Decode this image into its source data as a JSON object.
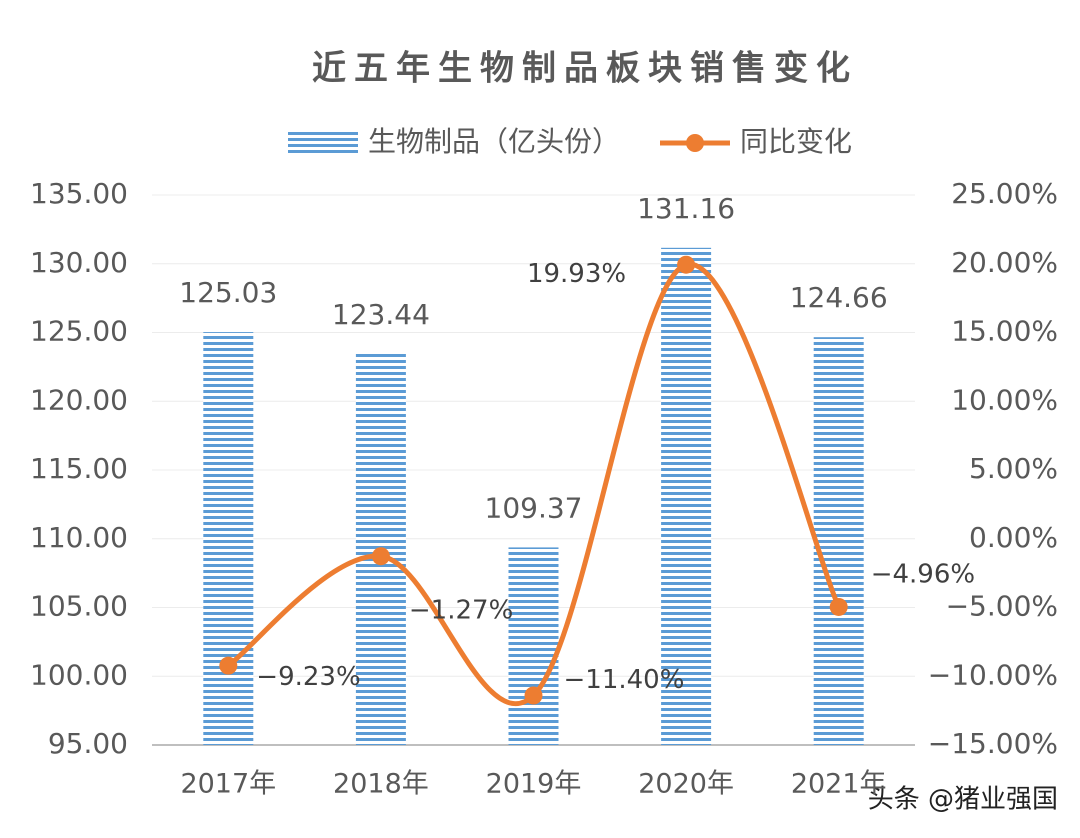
{
  "chart_data": {
    "type": "bar",
    "title": "近五年生物制品板块销售变化",
    "categories": [
      "2017年",
      "2018年",
      "2019年",
      "2020年",
      "2021年"
    ],
    "series": [
      {
        "name": "生物制品（亿头份）",
        "type": "bar",
        "color": "#5b9bd5",
        "values": [
          125.03,
          123.44,
          109.37,
          131.16,
          124.66
        ]
      },
      {
        "name": "同比变化",
        "type": "line",
        "axis": "y2",
        "color": "#ed7d31",
        "values": [
          -9.23,
          -1.27,
          -11.4,
          19.93,
          -4.96
        ],
        "value_labels": [
          "−9.23%",
          "−1.27%",
          "−11.40%",
          "19.93%",
          "−4.96%"
        ]
      }
    ],
    "ylim": [
      95,
      135
    ],
    "yticks": [
      {
        "value": 95,
        "label": "95.00"
      },
      {
        "value": 100,
        "label": "100.00"
      },
      {
        "value": 105,
        "label": "105.00"
      },
      {
        "value": 110,
        "label": "110.00"
      },
      {
        "value": 115,
        "label": "115.00"
      },
      {
        "value": 120,
        "label": "120.00"
      },
      {
        "value": 125,
        "label": "125.00"
      },
      {
        "value": 130,
        "label": "130.00"
      },
      {
        "value": 135,
        "label": "135.00"
      }
    ],
    "y2lim": [
      -15,
      25
    ],
    "y2ticks": [
      {
        "value": -15,
        "label": "−15.00%"
      },
      {
        "value": -10,
        "label": "−10.00%"
      },
      {
        "value": -5,
        "label": "−5.00%"
      },
      {
        "value": 0,
        "label": "0.00%"
      },
      {
        "value": 5,
        "label": "5.00%"
      },
      {
        "value": 10,
        "label": "10.00%"
      },
      {
        "value": 15,
        "label": "15.00%"
      },
      {
        "value": 20,
        "label": "20.00%"
      },
      {
        "value": 25,
        "label": "25.00%"
      }
    ],
    "grid": true,
    "legend": "top"
  },
  "watermark": "头条 @猪业强国"
}
